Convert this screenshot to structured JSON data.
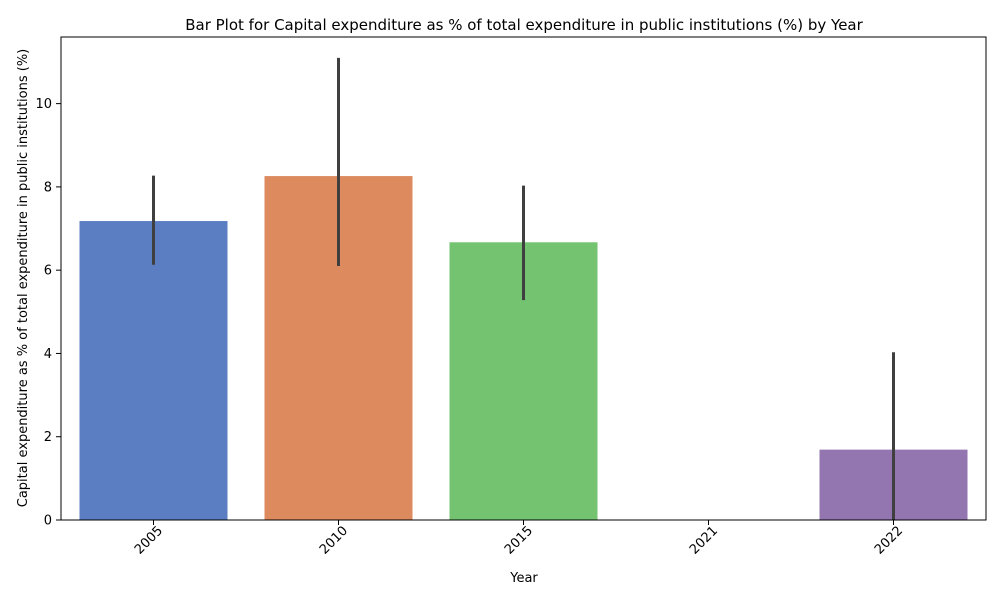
{
  "chart_data": {
    "type": "bar",
    "title": "Bar Plot for Capital expenditure as % of total expenditure in public institutions (%) by Year",
    "xlabel": "Year",
    "ylabel": "Capital expenditure as % of total expenditure in public institutions (%)",
    "categories": [
      "2005",
      "2010",
      "2015",
      "2021",
      "2022"
    ],
    "values": [
      7.18,
      8.26,
      6.67,
      0,
      1.69
    ],
    "error_low": [
      6.13,
      6.1,
      5.28,
      null,
      0
    ],
    "error_high": [
      8.27,
      11.1,
      8.03,
      null,
      4.03
    ],
    "colors": [
      "#5b7ec3",
      "#dc8a5e",
      "#73c371",
      null,
      "#9376af"
    ],
    "ylim": [
      0,
      11.6
    ],
    "yticks": [
      0,
      2,
      4,
      6,
      8,
      10
    ],
    "grid": false,
    "legend": "none",
    "error_bar_color": "#3f3f3f"
  }
}
